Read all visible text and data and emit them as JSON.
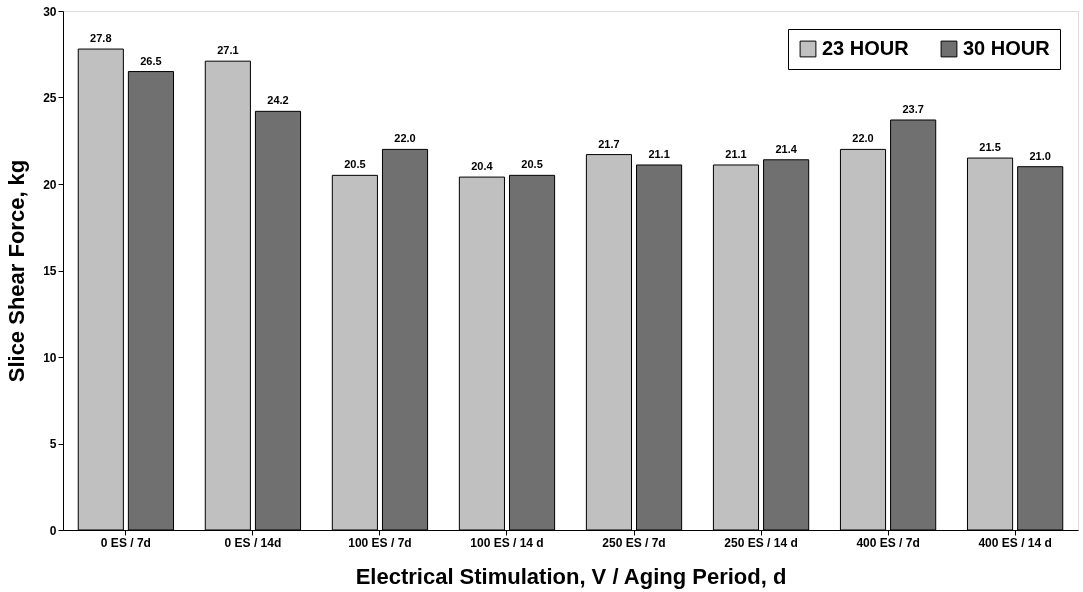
{
  "chart_data": {
    "type": "bar",
    "xlabel": "Electrical Stimulation, V / Aging Period, d",
    "ylabel": "Slice Shear Force, kg",
    "categories": [
      "0 ES / 7d",
      "0 ES / 14d",
      "100 ES / 7d",
      "100 ES / 14 d",
      "250 ES / 7d",
      "250 ES / 14 d",
      "400 ES / 7d",
      "400 ES / 14 d"
    ],
    "series": [
      {
        "name": "23 HOUR",
        "color": "#c0c0c0",
        "values": [
          27.8,
          27.1,
          20.5,
          20.4,
          21.7,
          21.1,
          22.0,
          21.5
        ],
        "value_labels": [
          "27.8",
          "27.1",
          "20.5",
          "20.4",
          "21.7",
          "21.1",
          "22.0",
          "21.5"
        ]
      },
      {
        "name": "30 HOUR",
        "color": "#707070",
        "values": [
          26.5,
          24.2,
          22.0,
          20.5,
          21.1,
          21.4,
          23.7,
          21.0
        ],
        "value_labels": [
          "26.5",
          "24.2",
          "22.0",
          "20.5",
          "21.1",
          "21.4",
          "23.7",
          "21.0"
        ]
      }
    ],
    "ylim": [
      0,
      30
    ],
    "yticks": [
      0,
      5,
      10,
      15,
      20,
      25,
      30
    ],
    "grid": false,
    "legend": "top right"
  }
}
